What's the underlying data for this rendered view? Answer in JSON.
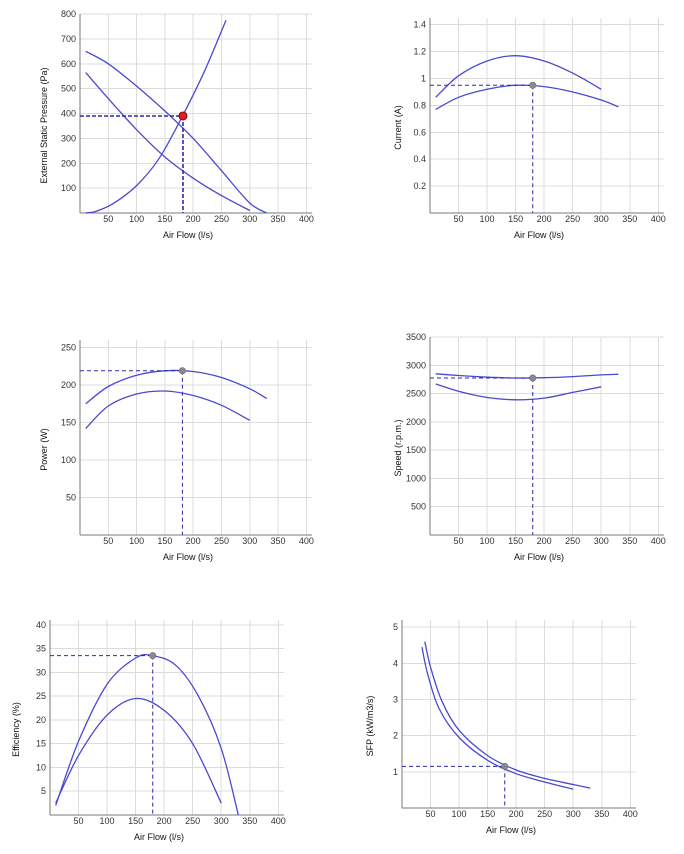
{
  "colors": {
    "curve": "#4a4ad0",
    "refline": "#2b2baa",
    "marker": "#8a8a8a",
    "marker_red": "#e02020",
    "grid": "#dcdcdc"
  },
  "chart_data": [
    {
      "type": "line",
      "xlabel": "Air Flow (l/s)",
      "ylabel": "External Static Pressure (Pa)",
      "xlim": [
        0,
        410
      ],
      "ylim": [
        0,
        800
      ],
      "xticks": [
        50,
        100,
        150,
        200,
        250,
        300,
        350,
        400
      ],
      "xtick_labels": [
        "50",
        "100",
        "150",
        "200",
        "250",
        "300",
        "350",
        "400"
      ],
      "yticks": [
        100,
        200,
        300,
        400,
        500,
        600,
        700,
        800
      ],
      "ytick_labels": [
        "100",
        "200",
        "300",
        "400",
        "500",
        "600",
        "700",
        "800"
      ],
      "grid": true,
      "legend": "none",
      "series": [
        {
          "x": [
            10,
            50,
            100,
            150,
            200,
            250,
            300,
            330
          ],
          "y": [
            650,
            600,
            510,
            410,
            300,
            170,
            40,
            0
          ]
        },
        {
          "x": [
            10,
            50,
            100,
            150,
            200,
            250,
            300
          ],
          "y": [
            565,
            460,
            335,
            225,
            140,
            70,
            10
          ]
        },
        {
          "x": [
            10,
            30,
            60,
            100,
            140,
            180,
            220,
            258
          ],
          "y": [
            0,
            8,
            40,
            110,
            220,
            385,
            570,
            775
          ]
        }
      ],
      "operating_point": {
        "x": 182,
        "y": 390,
        "style": "red"
      }
    },
    {
      "type": "line",
      "xlabel": "Air Flow (l/s)",
      "ylabel": "Current (A)",
      "xlim": [
        0,
        410
      ],
      "ylim": [
        0,
        1.45
      ],
      "xticks": [
        50,
        100,
        150,
        200,
        250,
        300,
        350,
        400
      ],
      "xtick_labels": [
        "50",
        "100",
        "150",
        "200",
        "250",
        "300",
        "350",
        "400"
      ],
      "yticks": [
        0.2,
        0.4,
        0.6,
        0.8,
        1,
        1.2,
        1.4
      ],
      "ytick_labels": [
        "0.2",
        "0.4",
        "0.6",
        "0.8",
        "1",
        "1.2",
        "1.4"
      ],
      "grid": true,
      "legend": "none",
      "series": [
        {
          "x": [
            10,
            50,
            100,
            150,
            200,
            250,
            300
          ],
          "y": [
            0.86,
            1.02,
            1.13,
            1.17,
            1.13,
            1.04,
            0.92
          ]
        },
        {
          "x": [
            10,
            50,
            100,
            150,
            200,
            250,
            300,
            330
          ],
          "y": [
            0.77,
            0.86,
            0.92,
            0.95,
            0.94,
            0.9,
            0.84,
            0.79
          ]
        }
      ],
      "operating_point": {
        "x": 180,
        "y": 0.95,
        "style": "grey"
      }
    },
    {
      "type": "line",
      "xlabel": "Air Flow (l/s)",
      "ylabel": "Power (W)",
      "xlim": [
        0,
        410
      ],
      "ylim": [
        0,
        260
      ],
      "xticks": [
        50,
        100,
        150,
        200,
        250,
        300,
        350,
        400
      ],
      "xtick_labels": [
        "50",
        "100",
        "150",
        "200",
        "250",
        "300",
        "350",
        "400"
      ],
      "yticks": [
        50,
        100,
        150,
        200,
        250
      ],
      "ytick_labels": [
        "50",
        "100",
        "150",
        "200",
        "250"
      ],
      "grid": true,
      "legend": "none",
      "series": [
        {
          "x": [
            10,
            50,
            100,
            150,
            200,
            250,
            300,
            330
          ],
          "y": [
            175,
            198,
            213,
            219,
            218,
            210,
            195,
            182
          ]
        },
        {
          "x": [
            10,
            50,
            100,
            150,
            200,
            250,
            300
          ],
          "y": [
            142,
            172,
            188,
            192,
            186,
            173,
            153
          ]
        }
      ],
      "operating_point": {
        "x": 181,
        "y": 219,
        "style": "grey"
      }
    },
    {
      "type": "line",
      "xlabel": "Air Flow (l/s)",
      "ylabel": "Speed (r.p.m.)",
      "xlim": [
        0,
        410
      ],
      "ylim": [
        0,
        3500
      ],
      "xticks": [
        50,
        100,
        150,
        200,
        250,
        300,
        350,
        400
      ],
      "xtick_labels": [
        "50",
        "100",
        "150",
        "200",
        "250",
        "300",
        "350",
        "400"
      ],
      "yticks": [
        500,
        1000,
        1500,
        2000,
        2500,
        3000,
        3500
      ],
      "ytick_labels": [
        "500",
        "1000",
        "1500",
        "2000",
        "2500",
        "3000",
        "3500"
      ],
      "grid": true,
      "legend": "none",
      "series": [
        {
          "x": [
            10,
            50,
            100,
            150,
            200,
            250,
            300,
            330
          ],
          "y": [
            2850,
            2820,
            2790,
            2775,
            2780,
            2800,
            2830,
            2840
          ]
        },
        {
          "x": [
            10,
            50,
            100,
            150,
            200,
            250,
            300
          ],
          "y": [
            2670,
            2540,
            2430,
            2390,
            2420,
            2520,
            2620
          ]
        }
      ],
      "operating_point": {
        "x": 180,
        "y": 2775,
        "style": "grey"
      }
    },
    {
      "type": "line",
      "xlabel": "Air Flow (l/s)",
      "ylabel": "Efficiency (%)",
      "xlim": [
        0,
        410
      ],
      "ylim": [
        0,
        41
      ],
      "xticks": [
        50,
        100,
        150,
        200,
        250,
        300,
        350,
        400
      ],
      "xtick_labels": [
        "50",
        "100",
        "150",
        "200",
        "250",
        "300",
        "350",
        "400"
      ],
      "yticks": [
        5,
        10,
        15,
        20,
        25,
        30,
        35,
        40
      ],
      "ytick_labels": [
        "5",
        "10",
        "15",
        "20",
        "25",
        "30",
        "35",
        "40"
      ],
      "grid": true,
      "legend": "none",
      "series": [
        {
          "x": [
            10,
            50,
            100,
            150,
            180,
            220,
            260,
            300,
            330
          ],
          "y": [
            2,
            15.5,
            27.5,
            33,
            33.5,
            31.5,
            25,
            14,
            0
          ]
        },
        {
          "x": [
            10,
            50,
            100,
            150,
            200,
            250,
            300
          ],
          "y": [
            2.5,
            12.5,
            21,
            24.5,
            22,
            15,
            2.5
          ]
        }
      ],
      "operating_point": {
        "x": 180,
        "y": 33.5,
        "style": "grey"
      }
    },
    {
      "type": "line",
      "xlabel": "Air Flow (l/s)",
      "ylabel": "SFP (kW/m3/s)",
      "xlim": [
        0,
        410
      ],
      "ylim": [
        0,
        5.2
      ],
      "xticks": [
        50,
        100,
        150,
        200,
        250,
        300,
        350,
        400
      ],
      "xtick_labels": [
        "50",
        "100",
        "150",
        "200",
        "250",
        "300",
        "350",
        "400"
      ],
      "yticks": [
        1,
        2,
        3,
        4,
        5
      ],
      "ytick_labels": [
        "1",
        "2",
        "3",
        "4",
        "5"
      ],
      "grid": true,
      "legend": "none",
      "series": [
        {
          "x": [
            40,
            50,
            70,
            100,
            150,
            200,
            250,
            300,
            330
          ],
          "y": [
            4.6,
            3.9,
            2.95,
            2.15,
            1.45,
            1.05,
            0.82,
            0.65,
            0.55
          ]
        },
        {
          "x": [
            35,
            45,
            65,
            100,
            150,
            200,
            250,
            300
          ],
          "y": [
            4.45,
            3.7,
            2.75,
            1.95,
            1.32,
            0.95,
            0.72,
            0.52
          ]
        }
      ],
      "operating_point": {
        "x": 180,
        "y": 1.15,
        "style": "grey"
      }
    }
  ]
}
